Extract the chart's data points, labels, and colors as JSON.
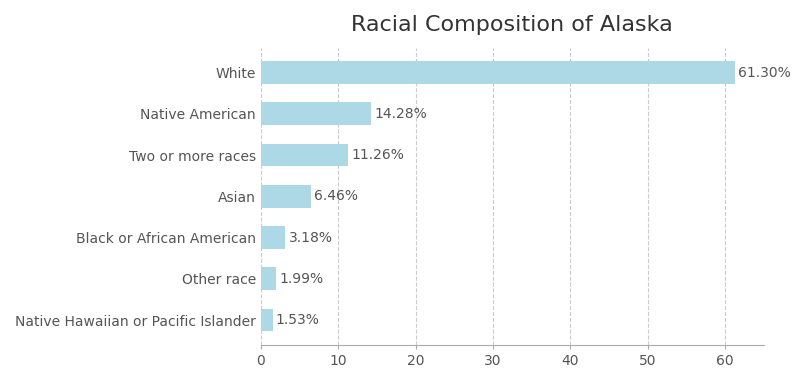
{
  "title": "Racial Composition of Alaska",
  "categories": [
    "Native Hawaiian or Pacific Islander",
    "Other race",
    "Black or African American",
    "Asian",
    "Two or more races",
    "Native American",
    "White"
  ],
  "values": [
    1.53,
    1.99,
    3.18,
    6.46,
    11.26,
    14.28,
    61.3
  ],
  "labels": [
    "1.53%",
    "1.99%",
    "3.18%",
    "6.46%",
    "11.26%",
    "14.28%",
    "61.30%"
  ],
  "bar_color": "#add8e6",
  "bar_edge_color": "none",
  "title_fontsize": 16,
  "label_fontsize": 10,
  "tick_fontsize": 10,
  "xlim": [
    0,
    65
  ],
  "xticks": [
    0,
    10,
    20,
    30,
    40,
    50,
    60
  ],
  "grid_color": "#cccccc",
  "grid_linestyle": "--",
  "background_color": "#ffffff",
  "text_color": "#555555",
  "title_color": "#333333"
}
